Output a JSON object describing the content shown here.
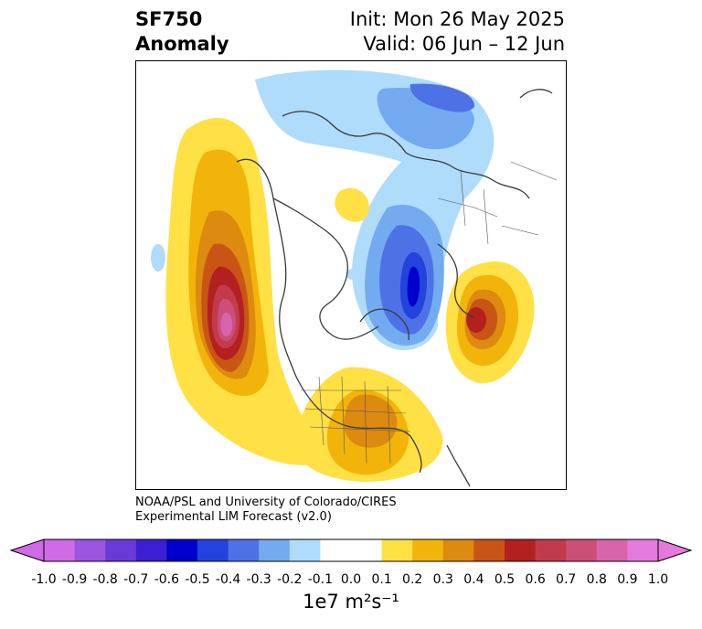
{
  "header": {
    "variable": "SF750",
    "subtitle": "Anomaly",
    "init": "Init: Mon 26 May 2025",
    "valid": "Valid: 06 Jun – 12 Jun"
  },
  "credit": {
    "line1": "NOAA/PSL and University of Colorado/CIRES",
    "line2": "Experimental LIM Forecast (v2.0)"
  },
  "colorbar": {
    "ticks": [
      "-1.0",
      "-0.9",
      "-0.8",
      "-0.7",
      "-0.6",
      "-0.5",
      "-0.4",
      "-0.3",
      "-0.2",
      "-0.1",
      "0.0",
      "0.1",
      "0.2",
      "0.3",
      "0.4",
      "0.5",
      "0.6",
      "0.7",
      "0.8",
      "0.9",
      "1.0"
    ],
    "colors": [
      "#d06ae6",
      "#9b55e0",
      "#6a3ad8",
      "#3c1fd0",
      "#0000cc",
      "#2244dd",
      "#4d72e6",
      "#73aaf0",
      "#aedcfa",
      "#ffffff",
      "#ffffff",
      "#ffe045",
      "#f2b40a",
      "#dc8a10",
      "#c85515",
      "#b32020",
      "#c23b4d",
      "#cc4f78",
      "#d864ac",
      "#e679dc"
    ],
    "units": "1e7 m²s⁻¹"
  }
}
